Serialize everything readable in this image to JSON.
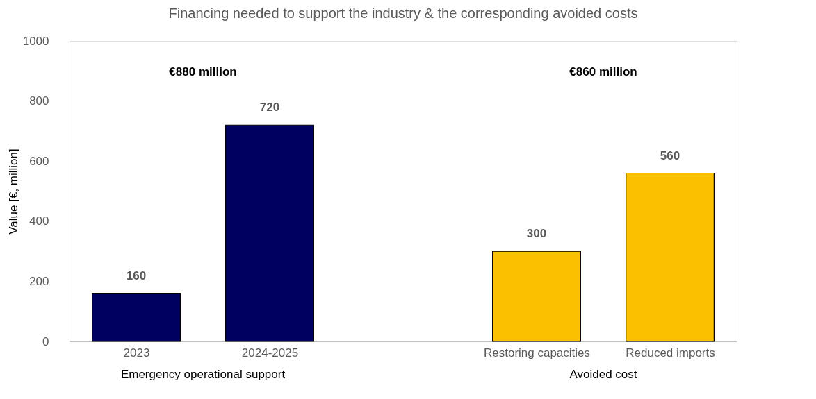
{
  "chart_data": {
    "type": "bar",
    "title": "Financing needed to support the industry & the corresponding avoided costs",
    "ylabel": "Value [€, million]",
    "categories": [
      "2023",
      "2024-2025",
      null,
      "Restoring capacities",
      "Reduced imports"
    ],
    "values": [
      160,
      720,
      null,
      300,
      560
    ],
    "colors": [
      "#000060",
      "#000060",
      null,
      "#fbc100",
      "#fbc100"
    ],
    "ylim": [
      0,
      1000
    ],
    "yticks": [
      0,
      200,
      400,
      600,
      800,
      1000
    ],
    "grid": false,
    "data_labels": true,
    "annotations": [
      "€880 million",
      "€860 million",
      "Emergency operational support",
      "Avoided cost"
    ]
  }
}
